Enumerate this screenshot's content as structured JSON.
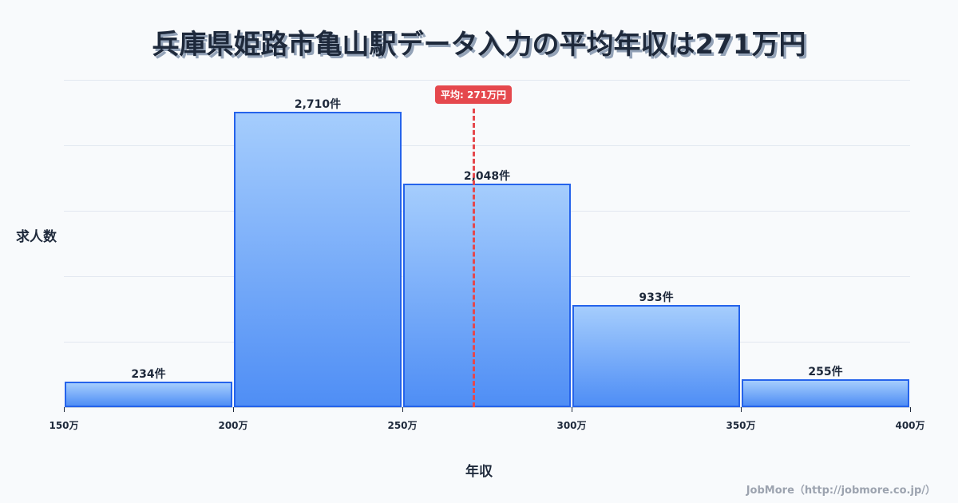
{
  "header": {
    "title": "兵庫県姫路市亀山駅データ入力の平均年収は271万円"
  },
  "axes": {
    "ylabel": "求人数",
    "xlabel": "年収"
  },
  "mean": {
    "label": "平均: 271万円",
    "value": 271
  },
  "footer": {
    "credit": "JobMore（http://jobmore.co.jp/）"
  },
  "colors": {
    "bar_fill_top": "#a5cdfd",
    "bar_fill_bottom": "#4f8ef5",
    "bar_border": "#2563eb",
    "mean_line": "#e5484d",
    "text": "#1e293b",
    "background": "#f8fafc"
  },
  "chart_data": {
    "type": "bar",
    "title": "兵庫県姫路市亀山駅データ入力の平均年収は271万円",
    "xlabel": "年収",
    "ylabel": "求人数",
    "bins": [
      {
        "range": [
          150,
          200
        ],
        "value": 234,
        "label": "234件"
      },
      {
        "range": [
          200,
          250
        ],
        "value": 2710,
        "label": "2,710件"
      },
      {
        "range": [
          250,
          300
        ],
        "value": 2048,
        "label": "2,048件"
      },
      {
        "range": [
          300,
          350
        ],
        "value": 933,
        "label": "933件"
      },
      {
        "range": [
          350,
          400
        ],
        "value": 255,
        "label": "255件"
      }
    ],
    "categories": [
      "150-200万",
      "200-250万",
      "250-300万",
      "300-350万",
      "350-400万"
    ],
    "values": [
      234,
      2710,
      2048,
      933,
      255
    ],
    "x_ticks": [
      "150万",
      "200万",
      "250万",
      "300万",
      "350万",
      "400万"
    ],
    "xlim": [
      150,
      400
    ],
    "ylim": [
      0,
      3000
    ],
    "grid": true,
    "annotations": [
      {
        "type": "vline",
        "x": 271,
        "label": "平均: 271万円"
      }
    ]
  }
}
